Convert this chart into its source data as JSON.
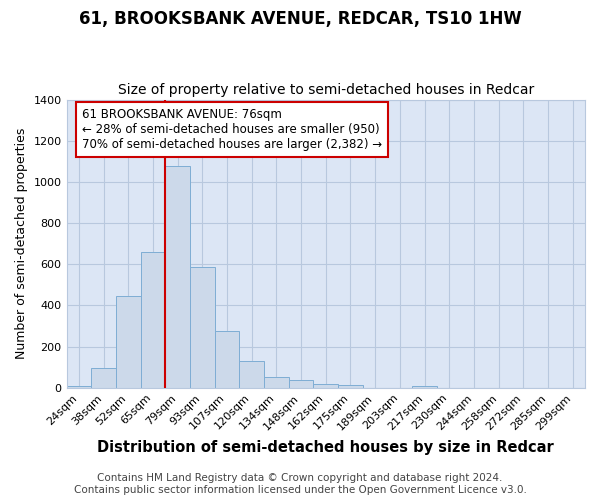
{
  "title": "61, BROOKSBANK AVENUE, REDCAR, TS10 1HW",
  "subtitle": "Size of property relative to semi-detached houses in Redcar",
  "xlabel": "Distribution of semi-detached houses by size in Redcar",
  "ylabel": "Number of semi-detached properties",
  "footer_line1": "Contains HM Land Registry data © Crown copyright and database right 2024.",
  "footer_line2": "Contains public sector information licensed under the Open Government Licence v3.0.",
  "categories": [
    "24sqm",
    "38sqm",
    "52sqm",
    "65sqm",
    "79sqm",
    "93sqm",
    "107sqm",
    "120sqm",
    "134sqm",
    "148sqm",
    "162sqm",
    "175sqm",
    "189sqm",
    "203sqm",
    "217sqm",
    "230sqm",
    "244sqm",
    "258sqm",
    "272sqm",
    "285sqm",
    "299sqm"
  ],
  "values": [
    10,
    95,
    445,
    660,
    1075,
    585,
    275,
    130,
    55,
    40,
    20,
    15,
    0,
    0,
    10,
    0,
    0,
    0,
    0,
    0,
    0
  ],
  "bar_color": "#ccd9ea",
  "bar_edge_color": "#7eadd4",
  "bar_edge_width": 0.7,
  "property_line_color": "#cc0000",
  "annotation_text": "61 BROOKSBANK AVENUE: 76sqm\n← 28% of semi-detached houses are smaller (950)\n70% of semi-detached houses are larger (2,382) →",
  "annotation_box_color": "#ffffff",
  "annotation_box_edge_color": "#cc0000",
  "ylim": [
    0,
    1400
  ],
  "yticks": [
    0,
    200,
    400,
    600,
    800,
    1000,
    1200,
    1400
  ],
  "plot_bg_color": "#dce6f5",
  "background_color": "#ffffff",
  "grid_color": "#b8c8de",
  "title_fontsize": 12,
  "subtitle_fontsize": 10,
  "xlabel_fontsize": 10.5,
  "ylabel_fontsize": 9,
  "tick_fontsize": 8,
  "footer_fontsize": 7.5,
  "annotation_fontsize": 8.5
}
